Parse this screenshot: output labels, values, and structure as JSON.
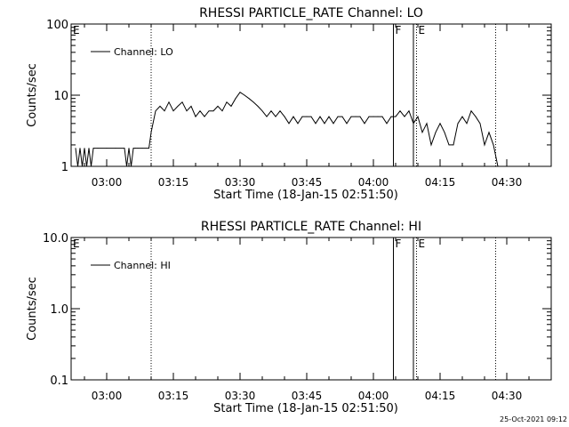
{
  "chart_data": [
    {
      "type": "line",
      "title": "RHESSI PARTICLE_RATE Channel: LO",
      "xlabel": "Start Time (18-Jan-15 02:51:50)",
      "ylabel": "Counts/sec",
      "yscale": "log",
      "ylim": [
        1,
        100
      ],
      "xlim_minutes": [
        -8,
        100
      ],
      "x_ticks": [
        {
          "t": 0,
          "label": "03:00"
        },
        {
          "t": 15,
          "label": "03:15"
        },
        {
          "t": 30,
          "label": "03:30"
        },
        {
          "t": 45,
          "label": "03:45"
        },
        {
          "t": 60,
          "label": "04:00"
        },
        {
          "t": 75,
          "label": "04:15"
        },
        {
          "t": 90,
          "label": "04:30"
        }
      ],
      "y_ticks": [
        {
          "v": 1,
          "label": "1"
        },
        {
          "v": 10,
          "label": "10"
        },
        {
          "v": 100,
          "label": "100"
        }
      ],
      "legend": {
        "label": "Channel: LO",
        "position": "top-left"
      },
      "series": [
        {
          "name": "Channel: LO",
          "x": [
            -7,
            -6.5,
            -6,
            -5.5,
            -5,
            -4.5,
            -4,
            -3.5,
            -3,
            -2,
            0,
            2,
            4,
            4.5,
            5,
            5.5,
            6,
            6.5,
            7,
            8,
            9.5,
            10,
            11,
            12,
            13,
            14,
            15,
            16,
            17,
            18,
            19,
            20,
            21,
            22,
            23,
            24,
            25,
            26,
            27,
            28,
            29,
            30,
            31,
            32,
            33,
            34,
            35,
            36,
            37,
            38,
            39,
            40,
            41,
            42,
            43,
            44,
            45,
            46,
            47,
            48,
            49,
            50,
            51,
            52,
            53,
            54,
            55,
            56,
            57,
            58,
            59,
            60,
            61,
            62,
            63,
            64,
            65,
            66,
            67,
            68,
            69,
            70,
            71,
            72,
            73,
            74,
            75,
            76,
            77,
            78,
            79,
            80,
            81,
            82,
            83,
            84,
            85,
            86,
            87,
            88
          ],
          "values": [
            1.8,
            1,
            1.8,
            1,
            1.8,
            1,
            1.8,
            1,
            1.8,
            1.8,
            1.8,
            1.8,
            1.8,
            1,
            1.8,
            1,
            1.8,
            1.8,
            1.8,
            1.8,
            1.8,
            3,
            6,
            7,
            6,
            8,
            6,
            7,
            8,
            6,
            7,
            5,
            6,
            5,
            6,
            6,
            7,
            6,
            8,
            7,
            9,
            11,
            10,
            9,
            8,
            7,
            6,
            5,
            6,
            5,
            6,
            5,
            4,
            5,
            4,
            5,
            5,
            5,
            4,
            5,
            4,
            5,
            4,
            5,
            5,
            4,
            5,
            5,
            5,
            4,
            5,
            5,
            5,
            5,
            4,
            5,
            5,
            6,
            5,
            6,
            4,
            5,
            3,
            4,
            2,
            3,
            4,
            3,
            2,
            2,
            4,
            5,
            4,
            6,
            5,
            4,
            2,
            3,
            2,
            1
          ]
        }
      ],
      "markers": [
        {
          "t": 10,
          "style": "dotted"
        },
        {
          "t": 64.5,
          "style": "solid",
          "label": "F"
        },
        {
          "t": 69,
          "style": "solid"
        },
        {
          "t": 69.7,
          "style": "dotted",
          "label": "E"
        },
        {
          "t": 87.5,
          "style": "dotted"
        }
      ],
      "corner_label": "E"
    },
    {
      "type": "line",
      "title": "RHESSI PARTICLE_RATE Channel: HI",
      "xlabel": "Start Time (18-Jan-15 02:51:50)",
      "ylabel": "Counts/sec",
      "yscale": "log",
      "ylim": [
        0.1,
        10
      ],
      "xlim_minutes": [
        -8,
        100
      ],
      "x_ticks": [
        {
          "t": 0,
          "label": "03:00"
        },
        {
          "t": 15,
          "label": "03:15"
        },
        {
          "t": 30,
          "label": "03:30"
        },
        {
          "t": 45,
          "label": "03:45"
        },
        {
          "t": 60,
          "label": "04:00"
        },
        {
          "t": 75,
          "label": "04:15"
        },
        {
          "t": 90,
          "label": "04:30"
        }
      ],
      "y_ticks": [
        {
          "v": 0.1,
          "label": "0.1"
        },
        {
          "v": 1,
          "label": "1.0"
        },
        {
          "v": 10,
          "label": "10.0"
        }
      ],
      "legend": {
        "label": "Channel: HI",
        "position": "top-left"
      },
      "series": [
        {
          "name": "Channel: HI",
          "x": [],
          "values": []
        }
      ],
      "markers": [
        {
          "t": 10,
          "style": "dotted"
        },
        {
          "t": 64.5,
          "style": "solid",
          "label": "F"
        },
        {
          "t": 69,
          "style": "solid"
        },
        {
          "t": 69.7,
          "style": "dotted",
          "label": "E"
        },
        {
          "t": 87.5,
          "style": "dotted"
        }
      ],
      "corner_label": "E"
    }
  ],
  "footer": {
    "timestamp": "25-Oct-2021 09:12"
  }
}
